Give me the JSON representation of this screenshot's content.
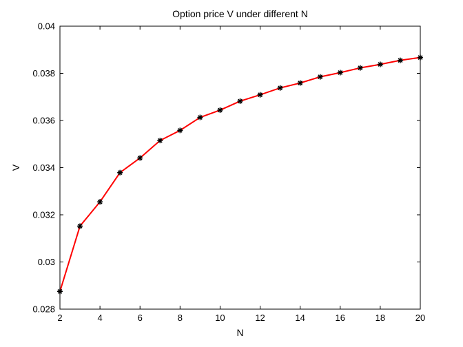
{
  "chart_data": {
    "type": "line",
    "title": "Option price V under different N",
    "xlabel": "N",
    "ylabel": "V",
    "xlim": [
      2,
      20
    ],
    "ylim": [
      0.028,
      0.04
    ],
    "xticks": [
      2,
      4,
      6,
      8,
      10,
      12,
      14,
      16,
      18,
      20
    ],
    "xtick_labels": [
      "2",
      "4",
      "6",
      "8",
      "10",
      "12",
      "14",
      "16",
      "18",
      "20"
    ],
    "yticks": [
      0.028,
      0.03,
      0.032,
      0.034,
      0.036,
      0.038,
      0.04
    ],
    "ytick_labels": [
      "0.028",
      "0.03",
      "0.032",
      "0.034",
      "0.036",
      "0.038",
      "0.04"
    ],
    "grid": false,
    "legend": "none",
    "series": [
      {
        "x": [
          2,
          3,
          4,
          5,
          6,
          7,
          8,
          9,
          10,
          11,
          12,
          13,
          14,
          15,
          16,
          17,
          18,
          19,
          20
        ],
        "y": [
          0.02875,
          0.03152,
          0.03255,
          0.03379,
          0.03441,
          0.03515,
          0.03558,
          0.03613,
          0.03644,
          0.03682,
          0.03709,
          0.03738,
          0.03759,
          0.03785,
          0.03803,
          0.03823,
          0.03838,
          0.03855,
          0.03867
        ],
        "line_color": "#ff0000",
        "marker": "asterisk",
        "marker_color": "#000000"
      }
    ]
  }
}
